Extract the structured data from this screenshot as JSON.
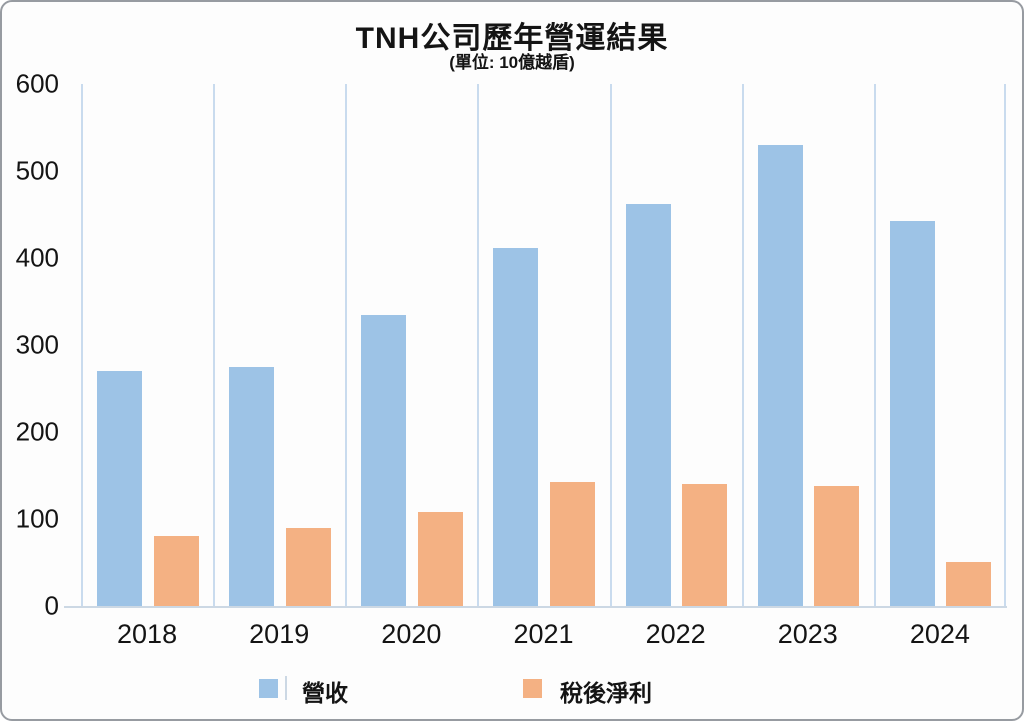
{
  "title": "TNH公司歷年營運結果",
  "subtitle": "(單位: 10億越盾)",
  "chart_data": {
    "type": "bar",
    "categories": [
      "2018",
      "2019",
      "2020",
      "2021",
      "2022",
      "2023",
      "2024"
    ],
    "series": [
      {
        "key": "revenue",
        "name": "營收",
        "color": "#9DC3E6",
        "values": [
          270,
          275,
          335,
          412,
          462,
          530,
          443
        ]
      },
      {
        "key": "net-profit",
        "name": "稅後淨利",
        "color": "#F4B183",
        "values": [
          80,
          90,
          108,
          143,
          140,
          138,
          50
        ]
      }
    ],
    "ylabel": "",
    "xlabel": "",
    "ylim": [
      0,
      600
    ],
    "yticks": [
      0,
      100,
      200,
      300,
      400,
      500,
      600
    ],
    "grid": "vertical-only",
    "legend_position": "bottom",
    "colors": {
      "gridline": "#c9dbee",
      "axis_line": "#ccd8e4",
      "text": "#141414"
    }
  }
}
